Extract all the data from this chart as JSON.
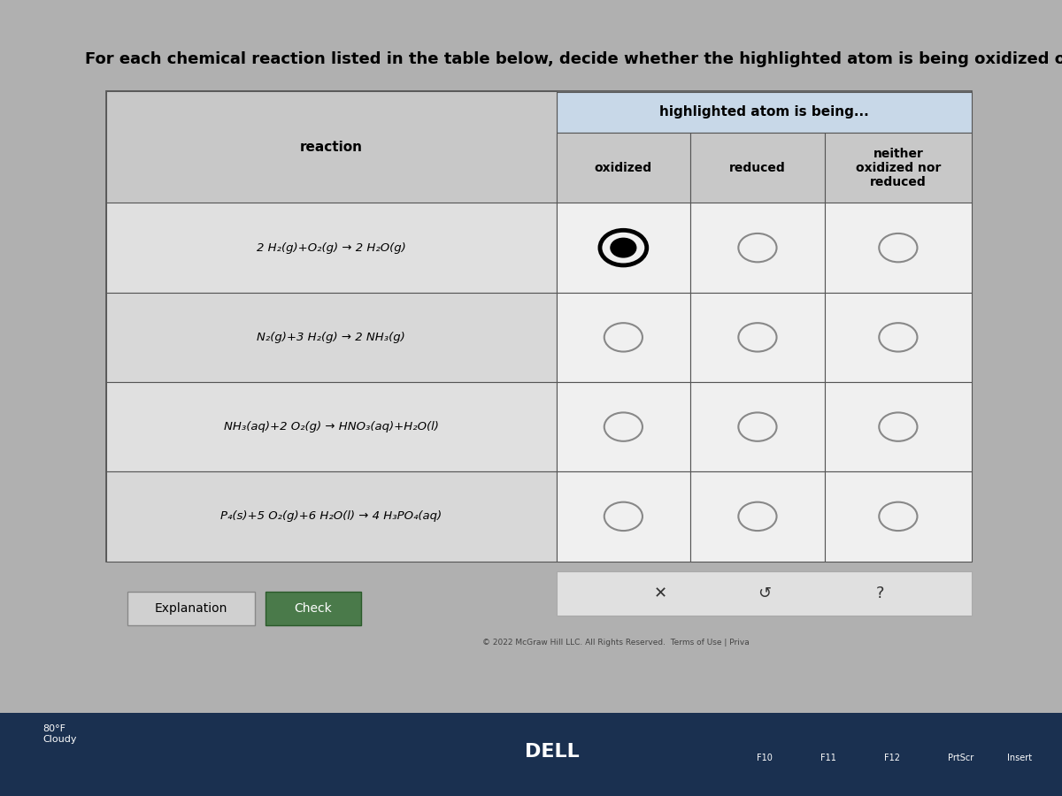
{
  "title": "For each chemical reaction listed in the table below, decide whether the highlighted atom is being oxidized or reduced.",
  "header_main": "highlighted atom is being...",
  "col_headers": [
    "oxidized",
    "reduced",
    "neither\noxidized nor\nreduced"
  ],
  "row_header": "reaction",
  "reactions_display": [
    "2 H₂(g)+O₂(g) → 2 H₂O(g)",
    "N₂(g)+3 H₂(g) → 2 NH₃(g)",
    "NH₃(aq)+2 O₂(g) → HNO₃(aq)+H₂O(l)",
    "P₄(s)+5 O₂(g)+6 H₂O(l) → 4 H₃PO₄(aq)"
  ],
  "bg_color": "#b0b0b0",
  "table_outer_bg": "#d0d0d0",
  "header_stripe_bg": "#c8d8e8",
  "reaction_col_bg": "#c8c8c8",
  "data_row_bg": "#e0e0e0",
  "option_col_bg": "#f0f0f0",
  "footer_text": "© 2022 McGraw Hill LLC. All Rights Reserved.  Terms of Use | Priva",
  "explanation_btn": "Explanation",
  "check_btn": "Check",
  "title_fontsize": 13,
  "header_fontsize": 11,
  "reaction_fontsize": 9.5,
  "taskbar_color": "#1a3050",
  "dell_text": "DELL",
  "weather_text": "80°F\nCloudy"
}
